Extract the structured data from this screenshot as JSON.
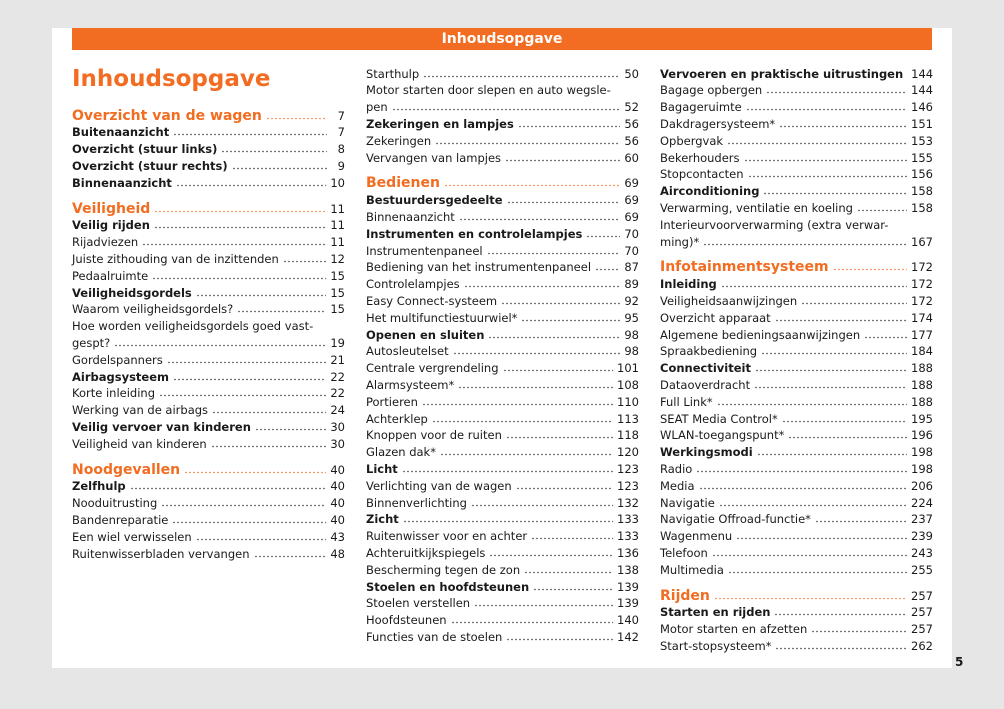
{
  "header": {
    "title": "Inhoudsopgave"
  },
  "page_title": "Inhoudsopgave",
  "page_number": 5,
  "columns": [
    [
      {
        "t": "Overzicht van de wagen",
        "p": 7,
        "k": "s"
      },
      {
        "t": "Buitenaanzicht",
        "p": 7,
        "k": "b"
      },
      {
        "t": "Overzicht (stuur links)",
        "p": 8,
        "k": "b"
      },
      {
        "t": "Overzicht (stuur rechts)",
        "p": 9,
        "k": "b"
      },
      {
        "t": "Binnenaanzicht",
        "p": 10,
        "k": "b"
      },
      {
        "t": "Veiligheid",
        "p": 11,
        "k": "s"
      },
      {
        "t": "Veilig rijden",
        "p": 11,
        "k": "b"
      },
      {
        "t": "Rijadviezen",
        "p": 11,
        "k": "n"
      },
      {
        "t": "Juiste zithouding van de inzittenden",
        "p": 12,
        "k": "n"
      },
      {
        "t": "Pedaalruimte",
        "p": 15,
        "k": "n"
      },
      {
        "t": "Veiligheidsgordels",
        "p": 15,
        "k": "b"
      },
      {
        "t": "Waarom veiligheidsgordels?",
        "p": 15,
        "k": "n"
      },
      {
        "t": [
          "Hoe worden veiligheidsgordels goed vast-",
          "gespt?"
        ],
        "p": 19,
        "k": "n"
      },
      {
        "t": "Gordelspanners",
        "p": 21,
        "k": "n"
      },
      {
        "t": "Airbagsysteem",
        "p": 22,
        "k": "b"
      },
      {
        "t": "Korte inleiding",
        "p": 22,
        "k": "n"
      },
      {
        "t": "Werking van de airbags",
        "p": 24,
        "k": "n"
      },
      {
        "t": "Veilig vervoer van kinderen",
        "p": 30,
        "k": "b"
      },
      {
        "t": "Veiligheid van kinderen",
        "p": 30,
        "k": "n"
      },
      {
        "t": "Noodgevallen",
        "p": 40,
        "k": "s"
      },
      {
        "t": "Zelfhulp",
        "p": 40,
        "k": "b"
      },
      {
        "t": "Nooduitrusting",
        "p": 40,
        "k": "n"
      },
      {
        "t": "Bandenreparatie",
        "p": 40,
        "k": "n"
      },
      {
        "t": "Een wiel verwisselen",
        "p": 43,
        "k": "n"
      },
      {
        "t": "Ruitenwisserbladen vervangen",
        "p": 48,
        "k": "n"
      }
    ],
    [
      {
        "t": "Starthulp",
        "p": 50,
        "k": "n"
      },
      {
        "t": [
          "Motor starten door slepen en auto wegsle-",
          "pen"
        ],
        "p": 52,
        "k": "n"
      },
      {
        "t": "Zekeringen en lampjes",
        "p": 56,
        "k": "b"
      },
      {
        "t": "Zekeringen",
        "p": 56,
        "k": "n"
      },
      {
        "t": "Vervangen van lampjes",
        "p": 60,
        "k": "n"
      },
      {
        "t": "Bedienen",
        "p": 69,
        "k": "s"
      },
      {
        "t": "Bestuurdersgedeelte",
        "p": 69,
        "k": "b"
      },
      {
        "t": "Binnenaanzicht",
        "p": 69,
        "k": "n"
      },
      {
        "t": "Instrumenten en controlelampjes",
        "p": 70,
        "k": "b"
      },
      {
        "t": "Instrumentenpaneel",
        "p": 70,
        "k": "n"
      },
      {
        "t": "Bediening van het instrumentenpaneel",
        "p": 87,
        "k": "n"
      },
      {
        "t": "Controlelampjes",
        "p": 89,
        "k": "n"
      },
      {
        "t": "Easy Connect-systeem",
        "p": 92,
        "k": "n"
      },
      {
        "t": "Het multifunctiestuurwiel*",
        "p": 95,
        "k": "n"
      },
      {
        "t": "Openen en sluiten",
        "p": 98,
        "k": "b"
      },
      {
        "t": "Autosleutelset",
        "p": 98,
        "k": "n"
      },
      {
        "t": "Centrale vergrendeling",
        "p": 101,
        "k": "n"
      },
      {
        "t": "Alarmsysteem*",
        "p": 108,
        "k": "n"
      },
      {
        "t": "Portieren",
        "p": 110,
        "k": "n"
      },
      {
        "t": "Achterklep",
        "p": 113,
        "k": "n"
      },
      {
        "t": "Knoppen voor de ruiten",
        "p": 118,
        "k": "n"
      },
      {
        "t": "Glazen dak*",
        "p": 120,
        "k": "n"
      },
      {
        "t": "Licht",
        "p": 123,
        "k": "b"
      },
      {
        "t": "Verlichting van de wagen",
        "p": 123,
        "k": "n"
      },
      {
        "t": "Binnenverlichting",
        "p": 132,
        "k": "n"
      },
      {
        "t": "Zicht",
        "p": 133,
        "k": "b"
      },
      {
        "t": "Ruitenwisser voor en achter",
        "p": 133,
        "k": "n"
      },
      {
        "t": "Achteruitkijkspiegels",
        "p": 136,
        "k": "n"
      },
      {
        "t": "Bescherming tegen de zon",
        "p": 138,
        "k": "n"
      },
      {
        "t": "Stoelen en hoofdsteunen",
        "p": 139,
        "k": "b"
      },
      {
        "t": "Stoelen verstellen",
        "p": 139,
        "k": "n"
      },
      {
        "t": "Hoofdsteunen",
        "p": 140,
        "k": "n"
      },
      {
        "t": "Functies van de stoelen",
        "p": 142,
        "k": "n"
      }
    ],
    [
      {
        "t": "Vervoeren en praktische uitrustingen",
        "p": 144,
        "k": "b"
      },
      {
        "t": "Bagage opbergen",
        "p": 144,
        "k": "n"
      },
      {
        "t": "Bagageruimte",
        "p": 146,
        "k": "n"
      },
      {
        "t": "Dakdragersysteem*",
        "p": 151,
        "k": "n"
      },
      {
        "t": "Opbergvak",
        "p": 153,
        "k": "n"
      },
      {
        "t": "Bekerhouders",
        "p": 155,
        "k": "n"
      },
      {
        "t": "Stopcontacten",
        "p": 156,
        "k": "n"
      },
      {
        "t": "Airconditioning",
        "p": 158,
        "k": "b"
      },
      {
        "t": "Verwarming, ventilatie en koeling",
        "p": 158,
        "k": "n"
      },
      {
        "t": [
          "Interieurvoorverwarming (extra verwar-",
          "ming)*"
        ],
        "p": 167,
        "k": "n"
      },
      {
        "t": "Infotainmentsysteem",
        "p": 172,
        "k": "s"
      },
      {
        "t": "Inleiding",
        "p": 172,
        "k": "b"
      },
      {
        "t": "Veiligheidsaanwijzingen",
        "p": 172,
        "k": "n"
      },
      {
        "t": "Overzicht apparaat",
        "p": 174,
        "k": "n"
      },
      {
        "t": "Algemene bedieningsaanwijzingen",
        "p": 177,
        "k": "n"
      },
      {
        "t": "Spraakbediening",
        "p": 184,
        "k": "n"
      },
      {
        "t": "Connectiviteit",
        "p": 188,
        "k": "b"
      },
      {
        "t": "Dataoverdracht",
        "p": 188,
        "k": "n"
      },
      {
        "t": "Full Link*",
        "p": 188,
        "k": "n"
      },
      {
        "t": "SEAT Media Control*",
        "p": 195,
        "k": "n"
      },
      {
        "t": "WLAN-toegangspunt*",
        "p": 196,
        "k": "n"
      },
      {
        "t": "Werkingsmodi",
        "p": 198,
        "k": "b"
      },
      {
        "t": "Radio",
        "p": 198,
        "k": "n"
      },
      {
        "t": "Media",
        "p": 206,
        "k": "n"
      },
      {
        "t": "Navigatie",
        "p": 224,
        "k": "n"
      },
      {
        "t": "Navigatie Offroad-functie*",
        "p": 237,
        "k": "n"
      },
      {
        "t": "Wagenmenu",
        "p": 239,
        "k": "n"
      },
      {
        "t": "Telefoon",
        "p": 243,
        "k": "n"
      },
      {
        "t": "Multimedia",
        "p": 255,
        "k": "n"
      },
      {
        "t": "Rijden",
        "p": 257,
        "k": "s"
      },
      {
        "t": "Starten en rijden",
        "p": 257,
        "k": "b"
      },
      {
        "t": "Motor starten en afzetten",
        "p": 257,
        "k": "n"
      },
      {
        "t": "Start-stopsysteem*",
        "p": 262,
        "k": "n"
      }
    ]
  ]
}
